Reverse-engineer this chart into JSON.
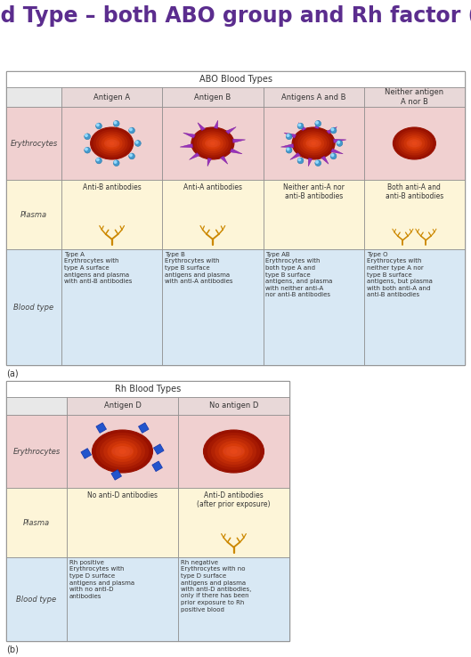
{
  "title": "Blood Type – both ABO group and Rh factor (+/-)",
  "title_color": "#5b2d8e",
  "title_fontsize": 17,
  "bg_color": "#ffffff",
  "table1_header": "ABO Blood Types",
  "table1_col_headers": [
    "Antigen A",
    "Antigen B",
    "Antigens A and B",
    "Neither antigen\nA nor B"
  ],
  "table1_plasma_labels": [
    "Anti-B antibodies",
    "Anti-A antibodies",
    "Neither anti-A nor\nanti-B antibodies",
    "Both anti-A and\nanti-B antibodies"
  ],
  "table1_blood_type_text": [
    "Type A\nErythrocytes with\ntype A surface\nantigens and plasma\nwith anti-B antibodies",
    "Type B\nErythrocytes with\ntype B surface\nantigens and plasma\nwith anti-A antibodies",
    "Type AB\nErythrocytes with\nboth type A and\ntype B surface\nantigens, and plasma\nwith neither anti-A\nnor anti-B antibodies",
    "Type O\nErythrocytes with\nneither type A nor\ntype B surface\nantigens, but plasma\nwith both anti-A and\nanti-B antibodies"
  ],
  "table2_header": "Rh Blood Types",
  "table2_col_headers": [
    "Antigen D",
    "No antigen D"
  ],
  "table2_plasma_labels": [
    "No anti-D antibodies",
    "Anti-D antibodies\n(after prior exposure)"
  ],
  "table2_blood_type_text": [
    "Rh positive\nErythrocytes with\ntype D surface\nantigens and plasma\nwith no anti-D\nantibodies",
    "Rh negative\nErythrocytes with no\ntype D surface\nantigens and plasma\nwith anti-D antibodies,\nonly if there has been\nprior exposure to Rh\npositive blood"
  ],
  "row_bg_erythrocytes": "#f0d0d0",
  "row_bg_plasma": "#fdf5d8",
  "row_bg_blood_type": "#d8e8f4",
  "col_header_bg": "#e8d8d8",
  "row_header_bg": "#e8e8e8",
  "cell_border": "#aaaaaa",
  "note_a": "(a)",
  "note_b": "(b)"
}
